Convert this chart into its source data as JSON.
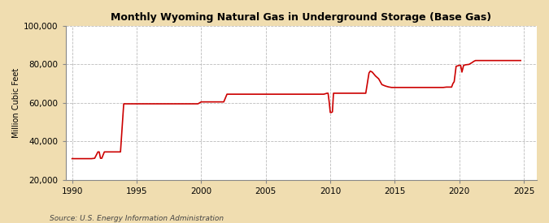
{
  "title": "Monthly Wyoming Natural Gas in Underground Storage (Base Gas)",
  "ylabel": "Million Cubic Feet",
  "source": "Source: U.S. Energy Information Administration",
  "background_color": "#f0ddb0",
  "plot_bg_color": "#ffffff",
  "line_color": "#cc0000",
  "line_width": 1.2,
  "xlim": [
    1989.5,
    2026
  ],
  "ylim": [
    20000,
    100000
  ],
  "yticks": [
    20000,
    40000,
    60000,
    80000,
    100000
  ],
  "xticks": [
    1990,
    1995,
    2000,
    2005,
    2010,
    2015,
    2020,
    2025
  ],
  "data": [
    [
      1990.0,
      31000
    ],
    [
      1990.5,
      31000
    ],
    [
      1991.0,
      31000
    ],
    [
      1991.5,
      31000
    ],
    [
      1991.75,
      31200
    ],
    [
      1992.0,
      34500
    ],
    [
      1992.1,
      34500
    ],
    [
      1992.2,
      31200
    ],
    [
      1992.3,
      31200
    ],
    [
      1992.5,
      34500
    ],
    [
      1992.75,
      34500
    ],
    [
      1993.0,
      34500
    ],
    [
      1993.5,
      34500
    ],
    [
      1993.75,
      34500
    ],
    [
      1994.0,
      59500
    ],
    [
      1994.25,
      59500
    ],
    [
      1994.5,
      59500
    ],
    [
      1994.75,
      59500
    ],
    [
      1995.0,
      59500
    ],
    [
      1995.25,
      59500
    ],
    [
      1995.5,
      59500
    ],
    [
      1995.75,
      59500
    ],
    [
      1996.0,
      59500
    ],
    [
      1996.25,
      59500
    ],
    [
      1996.5,
      59500
    ],
    [
      1996.75,
      59500
    ],
    [
      1997.0,
      59500
    ],
    [
      1997.25,
      59500
    ],
    [
      1997.5,
      59500
    ],
    [
      1997.75,
      59500
    ],
    [
      1998.0,
      59500
    ],
    [
      1998.25,
      59500
    ],
    [
      1998.5,
      59500
    ],
    [
      1998.75,
      59500
    ],
    [
      1999.0,
      59500
    ],
    [
      1999.25,
      59500
    ],
    [
      1999.5,
      59500
    ],
    [
      1999.75,
      59500
    ],
    [
      2000.0,
      60500
    ],
    [
      2000.25,
      60500
    ],
    [
      2000.5,
      60500
    ],
    [
      2000.75,
      60500
    ],
    [
      2001.0,
      60500
    ],
    [
      2001.25,
      60500
    ],
    [
      2001.5,
      60500
    ],
    [
      2001.75,
      60500
    ],
    [
      2002.0,
      64500
    ],
    [
      2002.25,
      64500
    ],
    [
      2002.5,
      64500
    ],
    [
      2002.75,
      64500
    ],
    [
      2003.0,
      64500
    ],
    [
      2003.25,
      64500
    ],
    [
      2003.5,
      64500
    ],
    [
      2003.75,
      64500
    ],
    [
      2004.0,
      64500
    ],
    [
      2004.25,
      64500
    ],
    [
      2004.5,
      64500
    ],
    [
      2004.75,
      64500
    ],
    [
      2005.0,
      64500
    ],
    [
      2005.25,
      64500
    ],
    [
      2005.5,
      64500
    ],
    [
      2005.75,
      64500
    ],
    [
      2006.0,
      64500
    ],
    [
      2006.25,
      64500
    ],
    [
      2006.5,
      64500
    ],
    [
      2006.75,
      64500
    ],
    [
      2007.0,
      64500
    ],
    [
      2007.25,
      64500
    ],
    [
      2007.5,
      64500
    ],
    [
      2007.75,
      64500
    ],
    [
      2008.0,
      64500
    ],
    [
      2008.25,
      64500
    ],
    [
      2008.5,
      64500
    ],
    [
      2008.75,
      64500
    ],
    [
      2009.0,
      64500
    ],
    [
      2009.25,
      64500
    ],
    [
      2009.5,
      64500
    ],
    [
      2009.75,
      65000
    ],
    [
      2009.83,
      65000
    ],
    [
      2009.917,
      60500
    ],
    [
      2010.0,
      55000
    ],
    [
      2010.083,
      55000
    ],
    [
      2010.167,
      55300
    ],
    [
      2010.25,
      65000
    ],
    [
      2010.5,
      65000
    ],
    [
      2010.75,
      65000
    ],
    [
      2011.0,
      65000
    ],
    [
      2011.25,
      65000
    ],
    [
      2011.5,
      65000
    ],
    [
      2011.75,
      65000
    ],
    [
      2012.0,
      65000
    ],
    [
      2012.25,
      65000
    ],
    [
      2012.5,
      65000
    ],
    [
      2012.75,
      65000
    ],
    [
      2013.0,
      75500
    ],
    [
      2013.1,
      76500
    ],
    [
      2013.25,
      76000
    ],
    [
      2013.5,
      74000
    ],
    [
      2013.75,
      72500
    ],
    [
      2014.0,
      69500
    ],
    [
      2014.25,
      68800
    ],
    [
      2014.5,
      68300
    ],
    [
      2014.75,
      68000
    ],
    [
      2015.0,
      68000
    ],
    [
      2015.25,
      68000
    ],
    [
      2015.5,
      68000
    ],
    [
      2015.75,
      68000
    ],
    [
      2016.0,
      68000
    ],
    [
      2016.25,
      68000
    ],
    [
      2016.5,
      68000
    ],
    [
      2016.75,
      68000
    ],
    [
      2017.0,
      68000
    ],
    [
      2017.25,
      68000
    ],
    [
      2017.5,
      68000
    ],
    [
      2017.75,
      68000
    ],
    [
      2018.0,
      68000
    ],
    [
      2018.25,
      68000
    ],
    [
      2018.5,
      68000
    ],
    [
      2018.75,
      68000
    ],
    [
      2019.0,
      68200
    ],
    [
      2019.25,
      68200
    ],
    [
      2019.4,
      68200
    ],
    [
      2019.5,
      70000
    ],
    [
      2019.6,
      71000
    ],
    [
      2019.75,
      79000
    ],
    [
      2020.0,
      79500
    ],
    [
      2020.1,
      79500
    ],
    [
      2020.2,
      76000
    ],
    [
      2020.33,
      79500
    ],
    [
      2020.5,
      79800
    ],
    [
      2020.75,
      80000
    ],
    [
      2021.0,
      81000
    ],
    [
      2021.1,
      81500
    ],
    [
      2021.25,
      82000
    ],
    [
      2021.5,
      82000
    ],
    [
      2021.75,
      82000
    ],
    [
      2022.0,
      82000
    ],
    [
      2022.25,
      82000
    ],
    [
      2022.5,
      82000
    ],
    [
      2022.75,
      82000
    ],
    [
      2023.0,
      82000
    ],
    [
      2023.25,
      82000
    ],
    [
      2023.5,
      82000
    ],
    [
      2023.75,
      82000
    ],
    [
      2024.0,
      82000
    ],
    [
      2024.25,
      82000
    ],
    [
      2024.5,
      82000
    ],
    [
      2024.75,
      82000
    ]
  ]
}
